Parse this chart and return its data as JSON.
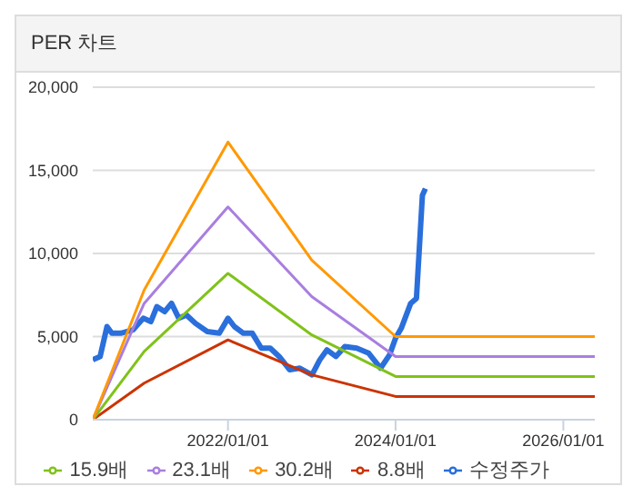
{
  "chart_data": {
    "type": "line",
    "title": "PER 차트",
    "xlim": [
      "2020-05-22",
      "2026-05-18"
    ],
    "xticks": [
      {
        "value": "2022-01-01",
        "label": "2022/01/01"
      },
      {
        "value": "2024-01-01",
        "label": "2024/01/01"
      },
      {
        "value": "2026-01-01",
        "label": "2026/01/01"
      }
    ],
    "ylim": [
      0,
      20000
    ],
    "yticks": [
      {
        "value": 0,
        "label": "0"
      },
      {
        "value": 5000,
        "label": "5,000"
      },
      {
        "value": 10000,
        "label": "10,000"
      },
      {
        "value": 15000,
        "label": "15,000"
      },
      {
        "value": 20000,
        "label": "20,000"
      }
    ],
    "grid": "y",
    "legend": "bottom",
    "marker": "none",
    "series": [
      {
        "name": "수정주가",
        "color": "#2a6fdb",
        "x": [
          "2020-05-22",
          "2020-06-23",
          "2020-07-23",
          "2020-08-13",
          "2020-09-21",
          "2020-11-13",
          "2020-12-28",
          "2021-01-30",
          "2021-02-25",
          "2021-03-31",
          "2021-04-30",
          "2021-06-01",
          "2021-07-04",
          "2021-08-12",
          "2021-10-03",
          "2021-11-24",
          "2022-01-01",
          "2022-01-29",
          "2022-03-09",
          "2022-04-17",
          "2022-05-26",
          "2022-07-04",
          "2022-08-12",
          "2022-09-27",
          "2022-11-10",
          "2023-01-02",
          "2023-02-05",
          "2023-03-08",
          "2023-04-16",
          "2023-05-25",
          "2023-07-16",
          "2023-09-06",
          "2023-10-28",
          "2023-12-06",
          "2024-01-01",
          "2024-01-26",
          "2024-03-07",
          "2024-04-01",
          "2024-04-27",
          "2024-05-10"
        ],
        "values": [
          3600,
          3800,
          5600,
          5200,
          5200,
          5400,
          6100,
          5900,
          6800,
          6500,
          7000,
          6100,
          6300,
          5800,
          5300,
          5200,
          6100,
          5600,
          5200,
          5200,
          4300,
          4300,
          3800,
          3000,
          3100,
          2700,
          3600,
          4200,
          3800,
          4400,
          4300,
          4000,
          3100,
          3900,
          4900,
          5500,
          7000,
          7300,
          13500,
          13900
        ]
      },
      {
        "name": "8.8배",
        "color": "#cc3300",
        "x": [
          "2020-05-22",
          "2021-01-01",
          "2022-01-01",
          "2023-01-01",
          "2024-01-01",
          "2026-05-18"
        ],
        "values": [
          0,
          2200,
          4800,
          2700,
          1400,
          1400
        ]
      },
      {
        "name": "15.9배",
        "color": "#80c21a",
        "x": [
          "2020-05-22",
          "2021-01-01",
          "2022-01-01",
          "2023-01-01",
          "2024-01-01",
          "2026-05-18"
        ],
        "values": [
          0,
          4100,
          8800,
          5100,
          2600,
          2600
        ]
      },
      {
        "name": "23.1배",
        "color": "#a97ee0",
        "x": [
          "2020-05-22",
          "2021-01-01",
          "2022-01-01",
          "2023-01-01",
          "2024-01-01",
          "2026-05-18"
        ],
        "values": [
          0,
          7000,
          12800,
          7400,
          3800,
          3800
        ]
      },
      {
        "name": "30.2배",
        "color": "#ff9900",
        "x": [
          "2020-05-22",
          "2021-01-01",
          "2022-01-01",
          "2023-01-01",
          "2024-01-01",
          "2026-05-18"
        ],
        "values": [
          0,
          7800,
          16700,
          9600,
          5000,
          5000
        ]
      }
    ]
  }
}
